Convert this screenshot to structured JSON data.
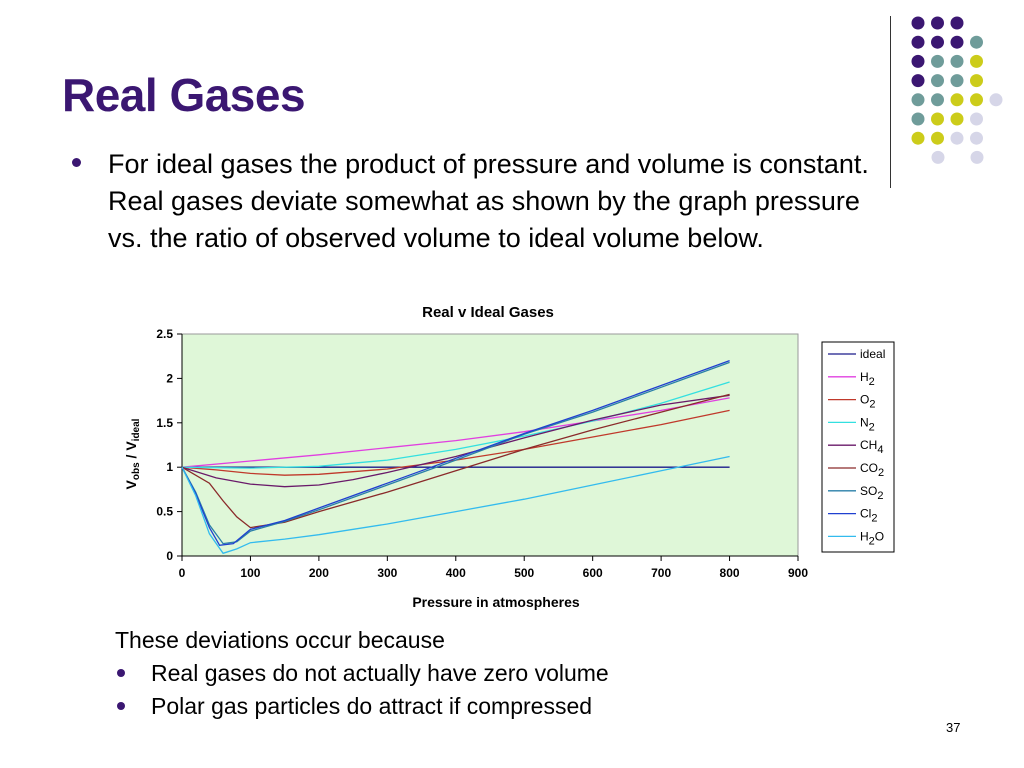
{
  "slide": {
    "title": "Real Gases",
    "body_text": "For ideal gases the product of pressure and volume is constant.  Real gases deviate somewhat as shown by the  graph pressure vs. the ratio of observed volume to ideal volume below.",
    "note_heading": "These deviations occur because",
    "reasons": [
      "Real gases do not actually have zero volume",
      "Polar gas particles do attract if compressed"
    ],
    "page_number": "37",
    "title_color": "#3b1772",
    "decor_colors": [
      "#3b1772",
      "#6f9c9a",
      "#cccc1a",
      "#d6d6e8"
    ]
  },
  "chart_data": {
    "type": "line",
    "title": "Real v Ideal Gases",
    "xlabel": "Pressure in atmospheres",
    "ylabel_main": "V",
    "ylabel_main_sub": "obs",
    "ylabel_sep": " / V",
    "ylabel_sub2": "ideal",
    "xlim": [
      0,
      900
    ],
    "ylim": [
      0,
      2.5
    ],
    "x_ticks": [
      "0",
      "100",
      "200",
      "300",
      "400",
      "500",
      "600",
      "700",
      "800",
      "900"
    ],
    "y_ticks": [
      "0",
      "0.5",
      "1",
      "1.5",
      "2",
      "2.5"
    ],
    "plot_background": "#dff7d8",
    "legend_position": "right",
    "series": [
      {
        "name": "ideal",
        "label_main": "ideal",
        "label_sub": "",
        "label_tail": "",
        "color": "#1a1a8a",
        "points": [
          [
            0,
            1
          ],
          [
            800,
            1
          ]
        ]
      },
      {
        "name": "H2",
        "label_main": "H",
        "label_sub": "2",
        "label_tail": "",
        "color": "#e040e0",
        "points": [
          [
            0,
            1
          ],
          [
            100,
            1.07
          ],
          [
            200,
            1.14
          ],
          [
            300,
            1.22
          ],
          [
            400,
            1.3
          ],
          [
            500,
            1.4
          ],
          [
            600,
            1.52
          ],
          [
            700,
            1.64
          ],
          [
            800,
            1.78
          ]
        ]
      },
      {
        "name": "O2",
        "label_main": "O",
        "label_sub": "2",
        "label_tail": "",
        "color": "#c0392b",
        "points": [
          [
            0,
            1
          ],
          [
            50,
            0.97
          ],
          [
            100,
            0.93
          ],
          [
            150,
            0.91
          ],
          [
            200,
            0.92
          ],
          [
            300,
            0.98
          ],
          [
            400,
            1.08
          ],
          [
            500,
            1.2
          ],
          [
            600,
            1.34
          ],
          [
            700,
            1.48
          ],
          [
            800,
            1.64
          ]
        ]
      },
      {
        "name": "N2",
        "label_main": "N",
        "label_sub": "2",
        "label_tail": "",
        "color": "#33e0e0",
        "points": [
          [
            0,
            1
          ],
          [
            100,
            0.99
          ],
          [
            200,
            1.01
          ],
          [
            300,
            1.08
          ],
          [
            400,
            1.2
          ],
          [
            500,
            1.35
          ],
          [
            600,
            1.52
          ],
          [
            700,
            1.72
          ],
          [
            800,
            1.96
          ]
        ]
      },
      {
        "name": "CH4",
        "label_main": "CH",
        "label_sub": "4",
        "label_tail": "",
        "color": "#6a1a6a",
        "points": [
          [
            0,
            1
          ],
          [
            50,
            0.88
          ],
          [
            100,
            0.81
          ],
          [
            150,
            0.78
          ],
          [
            200,
            0.8
          ],
          [
            250,
            0.86
          ],
          [
            300,
            0.94
          ],
          [
            400,
            1.12
          ],
          [
            500,
            1.33
          ],
          [
            600,
            1.53
          ],
          [
            700,
            1.7
          ],
          [
            800,
            1.81
          ]
        ]
      },
      {
        "name": "CO2",
        "label_main": "CO",
        "label_sub": "2",
        "label_tail": "",
        "color": "#8a2a2a",
        "points": [
          [
            0,
            1
          ],
          [
            40,
            0.82
          ],
          [
            60,
            0.62
          ],
          [
            80,
            0.44
          ],
          [
            100,
            0.32
          ],
          [
            150,
            0.38
          ],
          [
            200,
            0.5
          ],
          [
            300,
            0.72
          ],
          [
            400,
            0.96
          ],
          [
            500,
            1.2
          ],
          [
            600,
            1.42
          ],
          [
            700,
            1.62
          ],
          [
            800,
            1.82
          ]
        ]
      },
      {
        "name": "SO2",
        "label_main": "SO",
        "label_sub": "2",
        "label_tail": "",
        "color": "#2a7fa8",
        "points": [
          [
            0,
            1
          ],
          [
            20,
            0.72
          ],
          [
            40,
            0.35
          ],
          [
            60,
            0.14
          ],
          [
            80,
            0.16
          ],
          [
            100,
            0.28
          ],
          [
            150,
            0.39
          ],
          [
            200,
            0.52
          ],
          [
            300,
            0.8
          ],
          [
            400,
            1.08
          ],
          [
            500,
            1.37
          ],
          [
            600,
            1.62
          ],
          [
            700,
            1.9
          ],
          [
            800,
            2.18
          ]
        ]
      },
      {
        "name": "Cl2",
        "label_main": "Cl",
        "label_sub": "2",
        "label_tail": "",
        "color": "#2040d0",
        "points": [
          [
            0,
            1
          ],
          [
            20,
            0.7
          ],
          [
            40,
            0.32
          ],
          [
            55,
            0.12
          ],
          [
            75,
            0.14
          ],
          [
            100,
            0.3
          ],
          [
            150,
            0.4
          ],
          [
            200,
            0.54
          ],
          [
            300,
            0.82
          ],
          [
            400,
            1.1
          ],
          [
            500,
            1.38
          ],
          [
            600,
            1.64
          ],
          [
            700,
            1.92
          ],
          [
            800,
            2.2
          ]
        ]
      },
      {
        "name": "H2O",
        "label_main": "H",
        "label_sub": "2",
        "label_tail": "O",
        "color": "#33bbee",
        "points": [
          [
            0,
            1
          ],
          [
            20,
            0.68
          ],
          [
            40,
            0.25
          ],
          [
            60,
            0.03
          ],
          [
            80,
            0.08
          ],
          [
            100,
            0.15
          ],
          [
            150,
            0.19
          ],
          [
            200,
            0.24
          ],
          [
            300,
            0.36
          ],
          [
            400,
            0.5
          ],
          [
            500,
            0.64
          ],
          [
            600,
            0.8
          ],
          [
            700,
            0.96
          ],
          [
            800,
            1.12
          ]
        ]
      }
    ]
  }
}
